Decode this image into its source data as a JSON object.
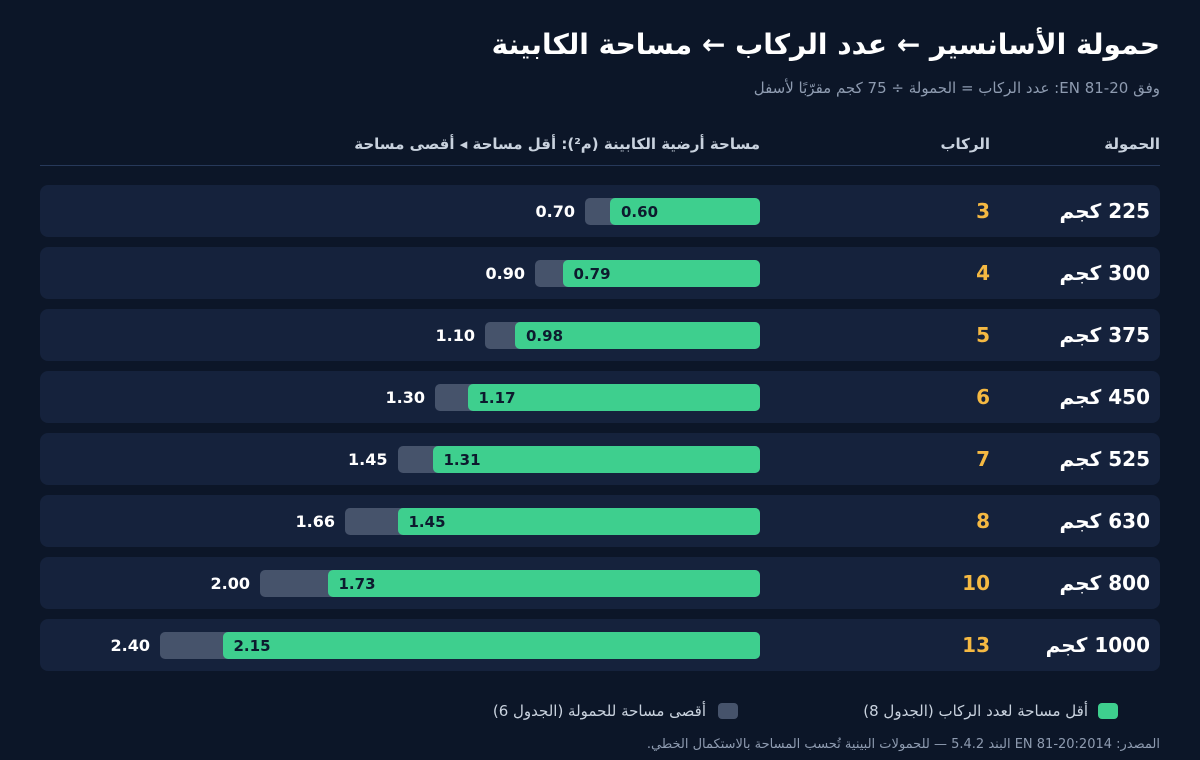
{
  "header": {
    "title": "حمولة الأسانسير ← عدد الركاب ← مساحة الكابينة",
    "subtitle": "وفق EN 81-20: عدد الركاب = الحمولة ÷ 75 كجم مقرّبًا لأسفل"
  },
  "columns": {
    "load": "الحمولة",
    "passengers": "الركاب",
    "area": "مساحة أرضية الكابينة (م²): أقل مساحة ◂ أقصى مساحة"
  },
  "legend": {
    "min": "أقل مساحة لعدد الركاب (الجدول 8)",
    "max": "أقصى مساحة للحمولة (الجدول 6)"
  },
  "source": "المصدر: EN 81-20:2014 البند 5.4.2 — للحمولات البينية تُحسب المساحة بالاستكمال الخطي.",
  "colors": {
    "background": "#0c1628",
    "row": "#15223c",
    "min_bar": "#3ecf8e",
    "max_bar": "#46536b",
    "passenger_icon": "#f5b942"
  },
  "icons": {
    "passenger": "person-icon"
  },
  "chart_data": {
    "type": "bar",
    "orientation": "horizontal",
    "xlim": [
      0,
      2.4
    ],
    "categories": [
      "225 كجم",
      "300 كجم",
      "375 كجم",
      "450 كجم",
      "525 كجم",
      "630 كجم",
      "800 كجم",
      "1000 كجم"
    ],
    "passengers": [
      3,
      4,
      5,
      6,
      7,
      8,
      10,
      13
    ],
    "series": [
      {
        "name": "أقل مساحة لعدد الركاب (الجدول 8)",
        "values": [
          0.6,
          0.79,
          0.98,
          1.17,
          1.31,
          1.45,
          1.73,
          2.15
        ]
      },
      {
        "name": "أقصى مساحة للحمولة (الجدول 6)",
        "values": [
          0.7,
          0.9,
          1.1,
          1.3,
          1.45,
          1.66,
          2.0,
          2.4
        ]
      }
    ],
    "min_labels": [
      "0.60",
      "0.79",
      "0.98",
      "1.17",
      "1.31",
      "1.45",
      "1.73",
      "2.15"
    ],
    "max_labels": [
      "0.70",
      "0.90",
      "1.10",
      "1.30",
      "1.45",
      "1.66",
      "2.00",
      "2.40"
    ]
  }
}
